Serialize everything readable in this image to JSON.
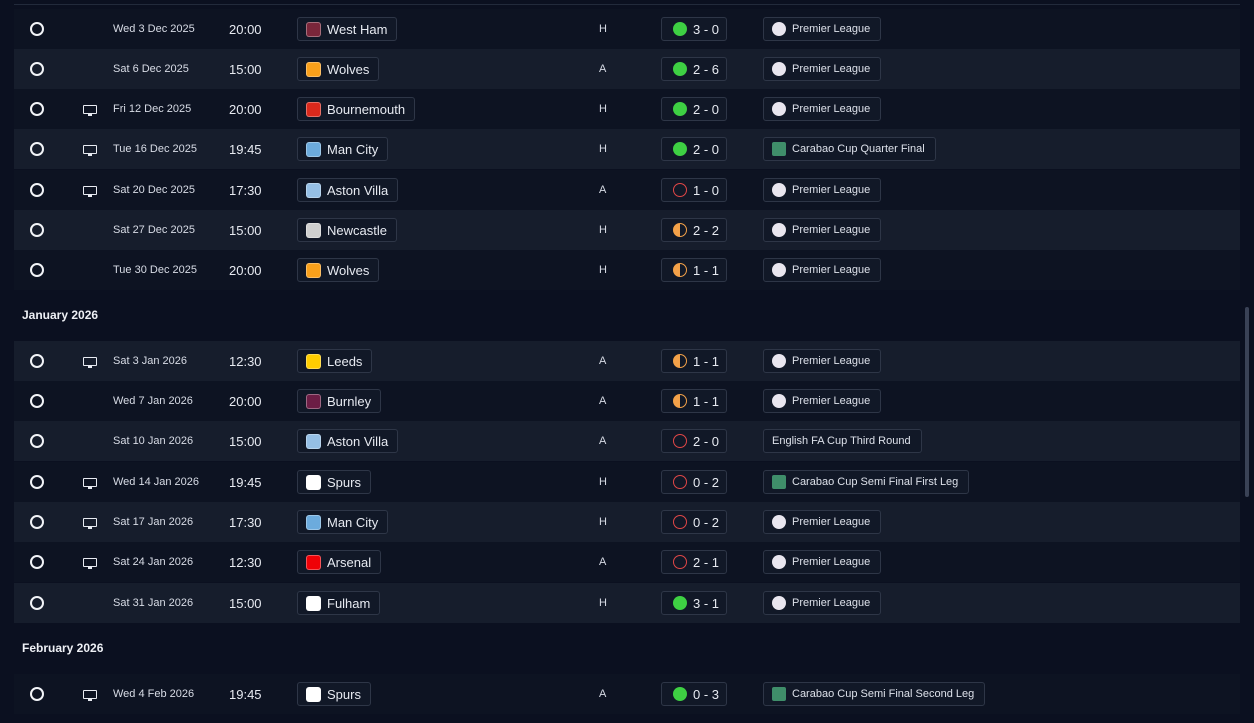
{
  "colors": {
    "win": "#3ed043",
    "loss": "#e04747",
    "draw": "#f3a149",
    "row_alt": "#161d2c",
    "bg": "#0d1322"
  },
  "months": [
    {
      "label": "January 2026"
    },
    {
      "label": "February 2026"
    }
  ],
  "fixtures": [
    {
      "tv": false,
      "date": "Wed 3 Dec 2025",
      "time": "20:00",
      "team": "West Ham",
      "team_color": "#7a263a",
      "venue": "H",
      "result": "win",
      "score": "3 - 0",
      "competition": "Premier League",
      "comp_icon": "premier-league-icon"
    },
    {
      "tv": false,
      "date": "Sat 6 Dec 2025",
      "time": "15:00",
      "team": "Wolves",
      "team_color": "#f9a01b",
      "venue": "A",
      "result": "win",
      "score": "2 - 6",
      "competition": "Premier League",
      "comp_icon": "premier-league-icon"
    },
    {
      "tv": true,
      "date": "Fri 12 Dec 2025",
      "time": "20:00",
      "team": "Bournemouth",
      "team_color": "#da291c",
      "venue": "H",
      "result": "win",
      "score": "2 - 0",
      "competition": "Premier League",
      "comp_icon": "premier-league-icon"
    },
    {
      "tv": true,
      "date": "Tue 16 Dec 2025",
      "time": "19:45",
      "team": "Man City",
      "team_color": "#6cabdd",
      "venue": "H",
      "result": "win",
      "score": "2 - 0",
      "competition": "Carabao Cup Quarter Final",
      "comp_icon": "carabao-cup-icon"
    },
    {
      "tv": true,
      "date": "Sat 20 Dec 2025",
      "time": "17:30",
      "team": "Aston Villa",
      "team_color": "#95bfe5",
      "venue": "A",
      "result": "loss",
      "score": "1 - 0",
      "competition": "Premier League",
      "comp_icon": "premier-league-icon"
    },
    {
      "tv": false,
      "date": "Sat 27 Dec 2025",
      "time": "15:00",
      "team": "Newcastle",
      "team_color": "#cfcfcf",
      "venue": "H",
      "result": "draw",
      "score": "2 - 2",
      "competition": "Premier League",
      "comp_icon": "premier-league-icon"
    },
    {
      "tv": false,
      "date": "Tue 30 Dec 2025",
      "time": "20:00",
      "team": "Wolves",
      "team_color": "#f9a01b",
      "venue": "H",
      "result": "draw",
      "score": "1 - 1",
      "competition": "Premier League",
      "comp_icon": "premier-league-icon"
    },
    {
      "tv": true,
      "date": "Sat 3 Jan 2026",
      "time": "12:30",
      "team": "Leeds",
      "team_color": "#ffcd00",
      "venue": "A",
      "result": "draw",
      "score": "1 - 1",
      "competition": "Premier League",
      "comp_icon": "premier-league-icon"
    },
    {
      "tv": false,
      "date": "Wed 7 Jan 2026",
      "time": "20:00",
      "team": "Burnley",
      "team_color": "#6c1d45",
      "venue": "A",
      "result": "draw",
      "score": "1 - 1",
      "competition": "Premier League",
      "comp_icon": "premier-league-icon"
    },
    {
      "tv": false,
      "date": "Sat 10 Jan 2026",
      "time": "15:00",
      "team": "Aston Villa",
      "team_color": "#95bfe5",
      "venue": "A",
      "result": "loss",
      "score": "2 - 0",
      "competition": "English FA Cup Third Round",
      "comp_icon": ""
    },
    {
      "tv": true,
      "date": "Wed 14 Jan 2026",
      "time": "19:45",
      "team": "Spurs",
      "team_color": "#ffffff",
      "venue": "H",
      "result": "loss",
      "score": "0 - 2",
      "competition": "Carabao Cup Semi Final First Leg",
      "comp_icon": "carabao-cup-icon"
    },
    {
      "tv": true,
      "date": "Sat 17 Jan 2026",
      "time": "17:30",
      "team": "Man City",
      "team_color": "#6cabdd",
      "venue": "H",
      "result": "loss",
      "score": "0 - 2",
      "competition": "Premier League",
      "comp_icon": "premier-league-icon"
    },
    {
      "tv": true,
      "date": "Sat 24 Jan 2026",
      "time": "12:30",
      "team": "Arsenal",
      "team_color": "#ef0107",
      "venue": "A",
      "result": "loss",
      "score": "2 - 1",
      "competition": "Premier League",
      "comp_icon": "premier-league-icon"
    },
    {
      "tv": false,
      "date": "Sat 31 Jan 2026",
      "time": "15:00",
      "team": "Fulham",
      "team_color": "#ffffff",
      "venue": "H",
      "result": "win",
      "score": "3 - 1",
      "competition": "Premier League",
      "comp_icon": "premier-league-icon"
    },
    {
      "tv": true,
      "date": "Wed 4 Feb 2026",
      "time": "19:45",
      "team": "Spurs",
      "team_color": "#ffffff",
      "venue": "A",
      "result": "win",
      "score": "0 - 3",
      "competition": "Carabao Cup Semi Final Second Leg",
      "comp_icon": "carabao-cup-icon"
    }
  ]
}
